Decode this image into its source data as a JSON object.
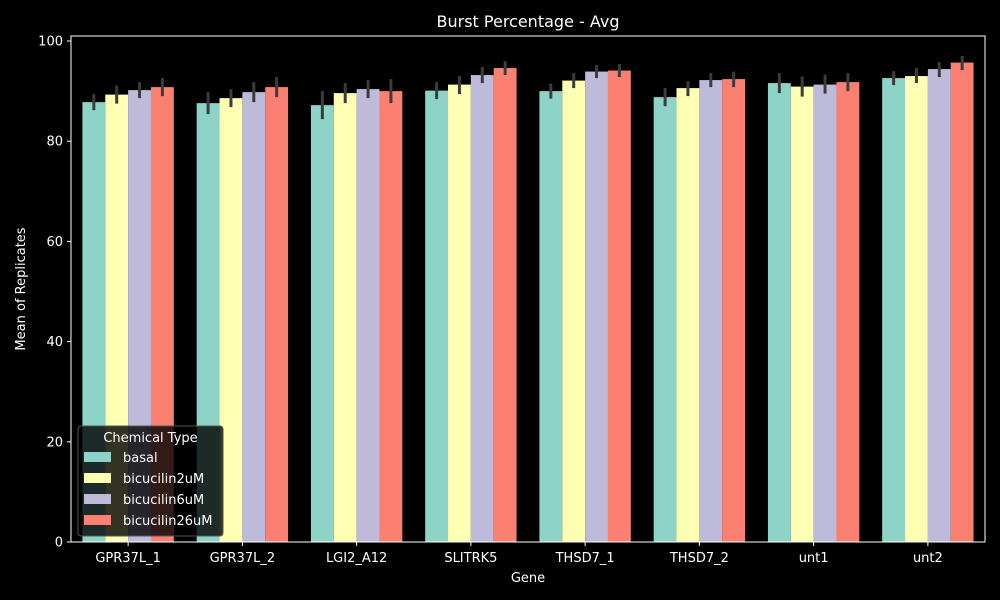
{
  "chart_data": {
    "type": "bar",
    "title": "Burst Percentage - Avg",
    "xlabel": "Gene",
    "ylabel": "Mean of Replicates",
    "ylim": [
      0,
      101
    ],
    "yticks": [
      0,
      20,
      40,
      60,
      80,
      100
    ],
    "grid": false,
    "legend": {
      "title": "Chemical Type",
      "placement": "lower-left"
    },
    "categories": [
      "GPR37L_1",
      "GPR37L_2",
      "LGI2_A12",
      "SLITRK5",
      "THSD7_1",
      "THSD7_2",
      "unt1",
      "unt2"
    ],
    "series": [
      {
        "name": "basal",
        "color": "#8dd3c7",
        "values": [
          87.8,
          87.6,
          87.2,
          90.1,
          90.0,
          88.8,
          91.6,
          92.6
        ],
        "err_low": [
          86.2,
          85.4,
          84.4,
          88.4,
          88.5,
          87.0,
          89.6,
          91.2
        ],
        "err_high": [
          89.4,
          89.8,
          90.0,
          91.8,
          91.5,
          90.6,
          93.6,
          94.0
        ]
      },
      {
        "name": "bicucilin2uM",
        "color": "#ffffb3",
        "values": [
          89.3,
          88.6,
          89.6,
          91.3,
          92.1,
          90.6,
          90.9,
          93.0
        ],
        "err_low": [
          87.5,
          86.8,
          87.6,
          89.4,
          90.6,
          89.0,
          88.9,
          91.6
        ],
        "err_high": [
          91.1,
          90.4,
          91.6,
          93.0,
          93.6,
          92.0,
          92.9,
          94.6
        ]
      },
      {
        "name": "bicucilin6uM",
        "color": "#bebada",
        "values": [
          90.2,
          89.8,
          90.4,
          93.2,
          93.9,
          92.2,
          91.3,
          94.4
        ],
        "err_low": [
          88.6,
          87.8,
          88.6,
          91.6,
          92.6,
          90.8,
          89.5,
          92.8
        ],
        "err_high": [
          91.8,
          91.8,
          92.2,
          94.8,
          95.2,
          93.6,
          93.3,
          95.8
        ]
      },
      {
        "name": "bicucilin26uM",
        "color": "#fb8072",
        "values": [
          90.8,
          90.8,
          90.0,
          94.6,
          94.1,
          92.4,
          91.8,
          95.7
        ],
        "err_low": [
          89.0,
          88.8,
          87.6,
          93.2,
          92.8,
          90.8,
          90.0,
          94.2
        ],
        "err_high": [
          92.6,
          92.8,
          92.4,
          96.0,
          95.4,
          93.9,
          93.6,
          97.0
        ]
      }
    ]
  }
}
